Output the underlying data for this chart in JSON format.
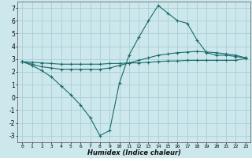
{
  "xlabel": "Humidex (Indice chaleur)",
  "background_color": "#cce8ec",
  "grid_color": "#aacdd4",
  "line_color": "#1a6b6b",
  "xlim": [
    -0.5,
    23.5
  ],
  "ylim": [
    -3.5,
    7.5
  ],
  "xticks": [
    0,
    1,
    2,
    3,
    4,
    5,
    6,
    7,
    8,
    9,
    10,
    11,
    12,
    13,
    14,
    15,
    16,
    17,
    18,
    19,
    20,
    21,
    22,
    23
  ],
  "yticks": [
    -3,
    -2,
    -1,
    0,
    1,
    2,
    3,
    4,
    5,
    6,
    7
  ],
  "line1_x": [
    0,
    1,
    2,
    3,
    4,
    5,
    6,
    7,
    8,
    9,
    10,
    11,
    12,
    13,
    14,
    15,
    16,
    17,
    18,
    19,
    20,
    21,
    22,
    23
  ],
  "line1_y": [
    2.8,
    2.5,
    2.1,
    1.6,
    0.9,
    0.2,
    -0.6,
    -1.6,
    -3.0,
    -2.6,
    1.1,
    3.3,
    4.7,
    6.0,
    7.2,
    6.6,
    6.0,
    5.8,
    4.5,
    3.5,
    3.3,
    3.3,
    3.2,
    3.1
  ],
  "line2_x": [
    0,
    1,
    2,
    3,
    4,
    5,
    6,
    7,
    8,
    9,
    10,
    11,
    12,
    13,
    14,
    15,
    16,
    17,
    18,
    19,
    20,
    21,
    22,
    23
  ],
  "line2_y": [
    2.8,
    2.6,
    2.4,
    2.3,
    2.2,
    2.2,
    2.2,
    2.2,
    2.2,
    2.3,
    2.5,
    2.7,
    2.9,
    3.1,
    3.3,
    3.4,
    3.5,
    3.55,
    3.6,
    3.55,
    3.5,
    3.4,
    3.3,
    3.1
  ],
  "line3_x": [
    0,
    1,
    2,
    3,
    4,
    5,
    6,
    7,
    8,
    9,
    10,
    11,
    12,
    13,
    14,
    15,
    16,
    17,
    18,
    19,
    20,
    21,
    22,
    23
  ],
  "line3_y": [
    2.8,
    2.75,
    2.7,
    2.65,
    2.6,
    2.6,
    2.6,
    2.6,
    2.6,
    2.65,
    2.65,
    2.7,
    2.7,
    2.75,
    2.8,
    2.85,
    2.85,
    2.9,
    2.9,
    2.9,
    2.9,
    2.9,
    2.9,
    3.05
  ],
  "xlabel_fontsize": 6.0,
  "tick_fontsize_x": 4.5,
  "tick_fontsize_y": 5.5
}
